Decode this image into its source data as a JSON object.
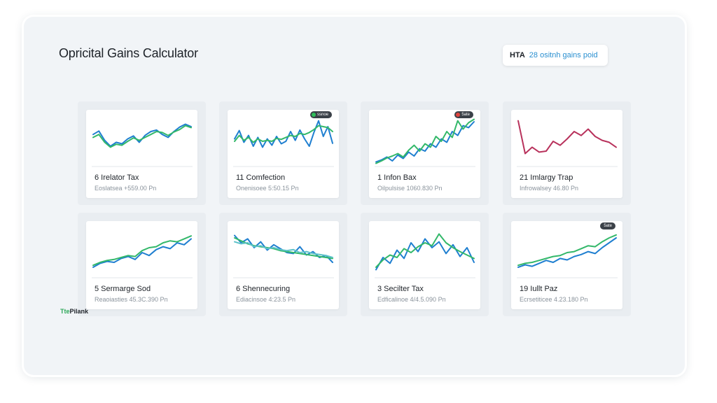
{
  "app": {
    "title": "Opricital Gains Calculator",
    "header_pill": {
      "code": "HTA",
      "text": "28 ositnh gains poid"
    },
    "footer": {
      "accent": "Tte",
      "label": "Pilank"
    }
  },
  "colors": {
    "blue": "#1f7fd0",
    "green": "#33b86a",
    "teal": "#5ec2c9",
    "red": "#b8325c"
  },
  "cards": [
    {
      "title": "6 Irelator Tax",
      "subtitle": "Eoslatsea +559.00 Pn",
      "badge": null,
      "series": [
        {
          "color": "blue",
          "values": [
            64,
            71,
            52,
            40,
            48,
            45,
            55,
            61,
            48,
            62,
            70,
            73,
            64,
            58,
            70,
            79,
            85,
            80
          ]
        },
        {
          "color": "green",
          "values": [
            58,
            64,
            48,
            38,
            44,
            42,
            50,
            57,
            52,
            58,
            64,
            70,
            68,
            62,
            69,
            74,
            82,
            78
          ]
        }
      ]
    },
    {
      "title": "11 Comfection",
      "subtitle": "Onenisoee 5:50.15 Pn",
      "badge": {
        "text": "ssnoe",
        "dot": "green"
      },
      "series": [
        {
          "color": "blue",
          "values": [
            55,
            72,
            48,
            62,
            40,
            58,
            38,
            55,
            42,
            60,
            45,
            50,
            70,
            52,
            73,
            55,
            40,
            68,
            92,
            60,
            80,
            46
          ]
        },
        {
          "color": "green",
          "values": [
            50,
            62,
            52,
            58,
            48,
            55,
            50,
            52,
            50,
            56,
            54,
            58,
            62,
            60,
            66,
            64,
            68,
            74,
            82,
            80,
            78,
            70
          ]
        }
      ]
    },
    {
      "title": "1 Infon Bax",
      "subtitle": "Oilpulsise 1060.830 Pn",
      "badge": {
        "text": "5ate",
        "dot": "red"
      },
      "series": [
        {
          "color": "blue",
          "values": [
            8,
            12,
            18,
            10,
            22,
            15,
            28,
            20,
            35,
            30,
            45,
            38,
            55,
            48,
            70,
            62,
            82,
            78,
            90
          ]
        },
        {
          "color": "green",
          "values": [
            5,
            10,
            16,
            20,
            25,
            18,
            32,
            42,
            30,
            45,
            38,
            60,
            50,
            70,
            58,
            92,
            75,
            88,
            95
          ]
        }
      ]
    },
    {
      "title": "21 Imlargy Trap",
      "subtitle": "Infrowalsey 46.80 Pn",
      "badge": null,
      "series": [
        {
          "color": "red",
          "values": [
            92,
            25,
            38,
            28,
            30,
            50,
            42,
            55,
            70,
            62,
            75,
            60,
            52,
            48,
            38
          ]
        }
      ]
    },
    {
      "title": "5 Sermarge Sod",
      "subtitle": "Reaoiasties 45.3C.390 Pn",
      "badge": null,
      "series": [
        {
          "color": "blue",
          "values": [
            20,
            28,
            32,
            30,
            38,
            42,
            36,
            50,
            44,
            56,
            62,
            58,
            70,
            66,
            78
          ]
        },
        {
          "color": "green",
          "values": [
            24,
            30,
            34,
            36,
            40,
            44,
            42,
            54,
            60,
            62,
            70,
            74,
            72,
            78,
            84
          ]
        }
      ]
    },
    {
      "title": "6 Shennecuring",
      "subtitle": "Ediacinsoe 4:23.5 Pn",
      "badge": null,
      "series": [
        {
          "color": "blue",
          "values": [
            85,
            70,
            78,
            60,
            72,
            55,
            66,
            58,
            50,
            48,
            62,
            45,
            52,
            40,
            44,
            30
          ]
        },
        {
          "color": "green",
          "values": [
            80,
            74,
            68,
            64,
            62,
            60,
            58,
            54,
            52,
            50,
            48,
            46,
            44,
            42,
            40,
            38
          ]
        },
        {
          "color": "teal",
          "values": [
            72,
            68,
            70,
            62,
            64,
            58,
            60,
            56,
            54,
            56,
            50,
            52,
            48,
            46,
            44,
            40
          ]
        }
      ]
    },
    {
      "title": "3 Secilter Tax",
      "subtitle": "Edficalinoe 4/4.5.090 Pn",
      "badge": null,
      "series": [
        {
          "color": "blue",
          "values": [
            15,
            40,
            28,
            55,
            38,
            70,
            52,
            78,
            60,
            72,
            48,
            66,
            42,
            60,
            30
          ]
        },
        {
          "color": "green",
          "values": [
            20,
            35,
            45,
            40,
            58,
            50,
            62,
            70,
            64,
            88,
            70,
            60,
            52,
            45,
            38
          ]
        }
      ]
    },
    {
      "title": "19 Iullt Paz",
      "subtitle": "Ecrsetiticee 4.23.180 Pn",
      "badge": {
        "text": "5ate",
        "dot": null
      },
      "series": [
        {
          "color": "blue",
          "values": [
            20,
            25,
            22,
            28,
            34,
            30,
            38,
            35,
            42,
            46,
            52,
            48,
            60,
            70,
            80
          ]
        },
        {
          "color": "green",
          "values": [
            24,
            28,
            30,
            34,
            38,
            42,
            44,
            50,
            52,
            58,
            64,
            62,
            72,
            80,
            86
          ]
        }
      ]
    }
  ]
}
